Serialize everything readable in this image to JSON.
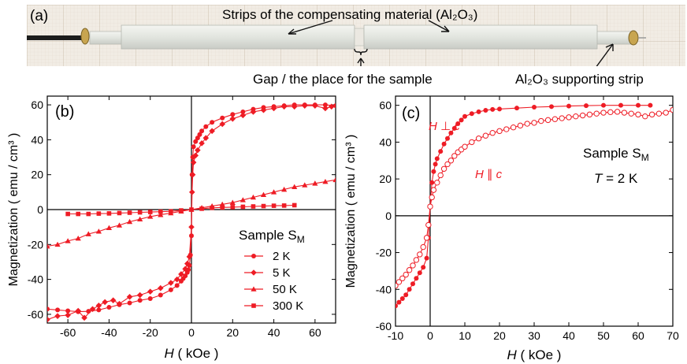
{
  "panel_a": {
    "label": "(a)",
    "strips_label": "Strips of the compensating material (Al₂O₃)",
    "gap_label": "Gap / the place for the sample",
    "support_label": "Al₂O₃ supporting strip"
  },
  "colors": {
    "series": "#ee1c25",
    "photo_bg": "#f1ece4",
    "grid": "#d9cfc2",
    "strip": "#e9ebe6"
  },
  "chart_data": [
    {
      "type": "line",
      "panel": "(b)",
      "xlabel_var": "H",
      "xlabel_unit": "( kOe )",
      "ylabel": "Magnetization ( emu / cm³ )",
      "xlim": [
        -70,
        70
      ],
      "ylim": [
        -65,
        65
      ],
      "xticks": [
        -60,
        -40,
        -20,
        0,
        20,
        40,
        60
      ],
      "yticks": [
        -60,
        -40,
        -20,
        0,
        20,
        40,
        60
      ],
      "legend_title": "Sample S",
      "legend_sub": "M",
      "legend_position": "bottom-right",
      "series": [
        {
          "name": "2 K",
          "marker": "circle",
          "points": [
            [
              -70,
              -57
            ],
            [
              -65,
              -57.5
            ],
            [
              -60,
              -58
            ],
            [
              -55,
              -58.5
            ],
            [
              -50,
              -58.3
            ],
            [
              -45,
              -57.5
            ],
            [
              -40,
              -56
            ],
            [
              -35,
              -54.5
            ],
            [
              -30,
              -53.5
            ],
            [
              -25,
              -52
            ],
            [
              -20,
              -51
            ],
            [
              -15,
              -49
            ],
            [
              -10,
              -46
            ],
            [
              -7,
              -43.5
            ],
            [
              -5,
              -41
            ],
            [
              -4,
              -39.5
            ],
            [
              -3,
              -38
            ],
            [
              -2,
              -36
            ],
            [
              -1.5,
              -34.5
            ],
            [
              -1,
              -32
            ],
            [
              -0.5,
              -26
            ],
            [
              0,
              -15
            ],
            [
              0.3,
              20
            ],
            [
              0.6,
              30
            ],
            [
              1,
              36
            ],
            [
              2,
              39
            ],
            [
              3,
              41
            ],
            [
              4,
              43
            ],
            [
              5,
              45
            ],
            [
              7,
              47.5
            ],
            [
              10,
              50
            ],
            [
              15,
              52.5
            ],
            [
              20,
              54.5
            ],
            [
              25,
              56
            ],
            [
              30,
              57.5
            ],
            [
              35,
              58.5
            ],
            [
              40,
              59
            ],
            [
              45,
              59.5
            ],
            [
              50,
              60
            ],
            [
              55,
              60
            ],
            [
              60,
              60
            ],
            [
              65,
              60
            ],
            [
              70,
              59.5
            ]
          ]
        },
        {
          "name": "5 K",
          "marker": "diamond",
          "points": [
            [
              -70,
              -63
            ],
            [
              -65,
              -61
            ],
            [
              -60,
              -60.5
            ],
            [
              -55,
              -58
            ],
            [
              -52,
              -62
            ],
            [
              -48,
              -57
            ],
            [
              -45,
              -55
            ],
            [
              -42,
              -53
            ],
            [
              -38,
              -52
            ],
            [
              -35,
              -54
            ],
            [
              -30,
              -50
            ],
            [
              -25,
              -49
            ],
            [
              -20,
              -47
            ],
            [
              -15,
              -45
            ],
            [
              -10,
              -42
            ],
            [
              -7,
              -40
            ],
            [
              -5,
              -37
            ],
            [
              -3,
              -34
            ],
            [
              -2,
              -31
            ],
            [
              -1,
              -27
            ],
            [
              0,
              -10
            ],
            [
              0.3,
              10
            ],
            [
              0.6,
              20
            ],
            [
              1,
              27
            ],
            [
              2,
              31
            ],
            [
              3,
              34
            ],
            [
              5,
              38
            ],
            [
              7,
              41
            ],
            [
              10,
              45
            ],
            [
              15,
              49
            ],
            [
              20,
              52
            ],
            [
              25,
              54
            ],
            [
              30,
              56
            ],
            [
              35,
              57
            ],
            [
              40,
              58
            ],
            [
              45,
              59
            ],
            [
              50,
              59
            ],
            [
              55,
              59.5
            ],
            [
              60,
              59.5
            ],
            [
              65,
              58
            ],
            [
              68,
              59
            ]
          ]
        },
        {
          "name": "50 K",
          "marker": "triangle",
          "points": [
            [
              -70,
              -21
            ],
            [
              -65,
              -20
            ],
            [
              -60,
              -18
            ],
            [
              -55,
              -16.5
            ],
            [
              -50,
              -14
            ],
            [
              -45,
              -12.5
            ],
            [
              -40,
              -10.5
            ],
            [
              -35,
              -9
            ],
            [
              -30,
              -7
            ],
            [
              -25,
              -5.5
            ],
            [
              -20,
              -4
            ],
            [
              -15,
              -3
            ],
            [
              -10,
              -2
            ],
            [
              -5,
              -1
            ],
            [
              0,
              0
            ],
            [
              5,
              1
            ],
            [
              10,
              2
            ],
            [
              15,
              3
            ],
            [
              20,
              4
            ],
            [
              25,
              5.5
            ],
            [
              30,
              7
            ],
            [
              35,
              8.5
            ],
            [
              40,
              10
            ],
            [
              45,
              11.5
            ],
            [
              50,
              13
            ],
            [
              55,
              14
            ],
            [
              60,
              15
            ],
            [
              65,
              16
            ],
            [
              70,
              17
            ]
          ]
        },
        {
          "name": "300 K",
          "marker": "square",
          "points": [
            [
              -60,
              -2.5
            ],
            [
              -55,
              -2.5
            ],
            [
              -50,
              -2.5
            ],
            [
              -45,
              -2.3
            ],
            [
              -40,
              -2.2
            ],
            [
              -35,
              -2
            ],
            [
              -30,
              -1.8
            ],
            [
              -25,
              -1.6
            ],
            [
              -20,
              -1.4
            ],
            [
              -15,
              -1.2
            ],
            [
              -10,
              -1
            ],
            [
              -5,
              -0.5
            ],
            [
              0,
              0
            ],
            [
              5,
              0.5
            ],
            [
              10,
              1
            ],
            [
              15,
              1.2
            ],
            [
              20,
              1.4
            ],
            [
              25,
              1.6
            ],
            [
              30,
              1.8
            ],
            [
              35,
              2
            ],
            [
              40,
              2.2
            ],
            [
              45,
              2.3
            ],
            [
              50,
              2.5
            ]
          ]
        }
      ]
    },
    {
      "type": "line",
      "panel": "(c)",
      "xlabel_var": "H",
      "xlabel_unit": "( kOe )",
      "ylabel": "Magnetization ( emu / cm³ )",
      "xlim": [
        -10,
        70
      ],
      "ylim": [
        -60,
        65
      ],
      "xticks": [
        -10,
        0,
        10,
        20,
        30,
        40,
        50,
        60,
        70
      ],
      "yticks": [
        -60,
        -40,
        -20,
        0,
        20,
        40,
        60
      ],
      "annotation_sample": "Sample S",
      "annotation_sample_sub": "M",
      "annotation_temp_var": "T",
      "annotation_temp_val": "= 2 K",
      "series": [
        {
          "name": "H ⊥ c",
          "marker": "circle-filled",
          "points": [
            [
              -10,
              -49
            ],
            [
              -9,
              -47
            ],
            [
              -8,
              -45
            ],
            [
              -7,
              -43
            ],
            [
              -6,
              -40
            ],
            [
              -5,
              -37
            ],
            [
              -4,
              -34
            ],
            [
              -3,
              -31
            ],
            [
              -2,
              -28
            ],
            [
              -1,
              -23
            ],
            [
              -0.5,
              -12
            ],
            [
              0,
              5
            ],
            [
              0.5,
              18
            ],
            [
              1,
              24
            ],
            [
              1.5,
              28
            ],
            [
              2,
              31
            ],
            [
              3,
              35
            ],
            [
              4,
              39
            ],
            [
              5,
              42
            ],
            [
              6,
              45
            ],
            [
              7,
              47.5
            ],
            [
              8,
              50
            ],
            [
              9,
              52
            ],
            [
              10,
              54
            ],
            [
              12,
              55.5
            ],
            [
              14,
              56.5
            ],
            [
              16,
              57.3
            ],
            [
              18,
              57.8
            ],
            [
              20,
              58
            ],
            [
              25,
              58.5
            ],
            [
              30,
              59
            ],
            [
              35,
              59.3
            ],
            [
              40,
              59.6
            ],
            [
              45,
              59.8
            ],
            [
              50,
              60
            ],
            [
              55,
              60
            ],
            [
              60,
              60
            ],
            [
              63.5,
              60
            ]
          ]
        },
        {
          "name": "H ∥ c",
          "marker": "circle-open",
          "points": [
            [
              -10,
              -38
            ],
            [
              -9,
              -36
            ],
            [
              -8,
              -34
            ],
            [
              -7,
              -32
            ],
            [
              -6,
              -29.5
            ],
            [
              -5,
              -27
            ],
            [
              -4,
              -24
            ],
            [
              -3,
              -21
            ],
            [
              -2,
              -17
            ],
            [
              -1,
              -12
            ],
            [
              -0.5,
              -5
            ],
            [
              0,
              5
            ],
            [
              0.5,
              10
            ],
            [
              1,
              14
            ],
            [
              2,
              18
            ],
            [
              3,
              22
            ],
            [
              4,
              25.5
            ],
            [
              5,
              28
            ],
            [
              6,
              30
            ],
            [
              7,
              32.5
            ],
            [
              8,
              34.5
            ],
            [
              9,
              36
            ],
            [
              10,
              37.5
            ],
            [
              12,
              40
            ],
            [
              14,
              42
            ],
            [
              16,
              43.5
            ],
            [
              18,
              45
            ],
            [
              20,
              46
            ],
            [
              22,
              47
            ],
            [
              24,
              48
            ],
            [
              26,
              49
            ],
            [
              28,
              50
            ],
            [
              30,
              50.5
            ],
            [
              32,
              51.5
            ],
            [
              34,
              52
            ],
            [
              36,
              52.5
            ],
            [
              38,
              53
            ],
            [
              40,
              53.5
            ],
            [
              42,
              54
            ],
            [
              44,
              54.5
            ],
            [
              46,
              55
            ],
            [
              48,
              55.5
            ],
            [
              50,
              56
            ],
            [
              52,
              56.3
            ],
            [
              54,
              56.5
            ],
            [
              56,
              56
            ],
            [
              58,
              55.5
            ],
            [
              60,
              55
            ],
            [
              62,
              54
            ],
            [
              64,
              55
            ],
            [
              66,
              55.5
            ],
            [
              68,
              56
            ],
            [
              70,
              57.5
            ]
          ]
        }
      ]
    }
  ]
}
